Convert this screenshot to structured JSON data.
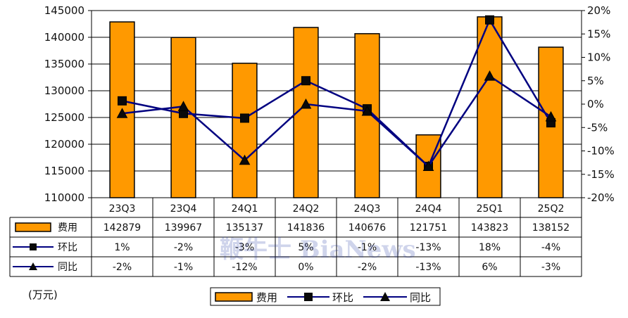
{
  "chart_data": {
    "type": "bar",
    "categories": [
      "23Q3",
      "23Q4",
      "24Q1",
      "24Q2",
      "24Q3",
      "24Q4",
      "25Q1",
      "25Q2"
    ],
    "series": [
      {
        "name": "费用",
        "type": "bar",
        "axis": "left",
        "color": "#FF9900",
        "values": [
          142879,
          139967,
          135137,
          141836,
          140676,
          121751,
          143823,
          138152
        ]
      },
      {
        "name": "环比",
        "type": "line",
        "axis": "right",
        "marker": "square",
        "color": "#000080",
        "values": [
          0.7,
          -2,
          -3,
          5,
          -1,
          -13.3,
          18,
          -4
        ],
        "labels": [
          "1%",
          "-2%",
          "-3%",
          "5%",
          "-1%",
          "-13%",
          "18%",
          "-4%"
        ]
      },
      {
        "name": "同比",
        "type": "line",
        "axis": "right",
        "marker": "triangle",
        "color": "#000080",
        "values": [
          -2,
          -0.5,
          -12,
          0,
          -1.5,
          -13.3,
          6,
          -2.7
        ],
        "labels": [
          "-2%",
          "-1%",
          "-12%",
          "0%",
          "-2%",
          "-13%",
          "6%",
          "-3%"
        ]
      }
    ],
    "ylim_left": [
      110000,
      145000
    ],
    "ylim_right": [
      -20,
      20
    ],
    "left_ticks": [
      "110000",
      "115000",
      "120000",
      "125000",
      "130000",
      "135000",
      "140000",
      "145000"
    ],
    "right_ticks": [
      "-20%",
      "-15%",
      "-10%",
      "-5%",
      "0%",
      "5%",
      "10%",
      "15%",
      "20%"
    ],
    "unit_label": "(万元)",
    "legend_position": "bottom",
    "watermark": "鞭牛士 BiaNews"
  }
}
